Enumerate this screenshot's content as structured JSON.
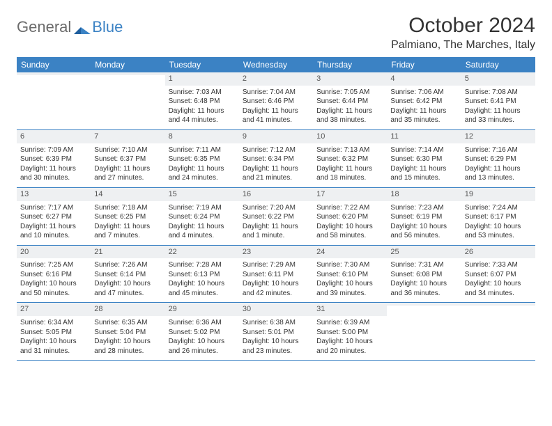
{
  "logo": {
    "part1": "General",
    "part2": "Blue"
  },
  "title": "October 2024",
  "location": "Palmiano, The Marches, Italy",
  "colors": {
    "header_bg": "#3b82c4",
    "daynum_bg": "#eef0f2",
    "border": "#3b82c4",
    "text": "#333333",
    "page_bg": "#ffffff"
  },
  "weekdays": [
    "Sunday",
    "Monday",
    "Tuesday",
    "Wednesday",
    "Thursday",
    "Friday",
    "Saturday"
  ],
  "weeks": [
    [
      {
        "n": "",
        "sr": "",
        "ss": "",
        "dl": ""
      },
      {
        "n": "",
        "sr": "",
        "ss": "",
        "dl": ""
      },
      {
        "n": "1",
        "sr": "Sunrise: 7:03 AM",
        "ss": "Sunset: 6:48 PM",
        "dl": "Daylight: 11 hours and 44 minutes."
      },
      {
        "n": "2",
        "sr": "Sunrise: 7:04 AM",
        "ss": "Sunset: 6:46 PM",
        "dl": "Daylight: 11 hours and 41 minutes."
      },
      {
        "n": "3",
        "sr": "Sunrise: 7:05 AM",
        "ss": "Sunset: 6:44 PM",
        "dl": "Daylight: 11 hours and 38 minutes."
      },
      {
        "n": "4",
        "sr": "Sunrise: 7:06 AM",
        "ss": "Sunset: 6:42 PM",
        "dl": "Daylight: 11 hours and 35 minutes."
      },
      {
        "n": "5",
        "sr": "Sunrise: 7:08 AM",
        "ss": "Sunset: 6:41 PM",
        "dl": "Daylight: 11 hours and 33 minutes."
      }
    ],
    [
      {
        "n": "6",
        "sr": "Sunrise: 7:09 AM",
        "ss": "Sunset: 6:39 PM",
        "dl": "Daylight: 11 hours and 30 minutes."
      },
      {
        "n": "7",
        "sr": "Sunrise: 7:10 AM",
        "ss": "Sunset: 6:37 PM",
        "dl": "Daylight: 11 hours and 27 minutes."
      },
      {
        "n": "8",
        "sr": "Sunrise: 7:11 AM",
        "ss": "Sunset: 6:35 PM",
        "dl": "Daylight: 11 hours and 24 minutes."
      },
      {
        "n": "9",
        "sr": "Sunrise: 7:12 AM",
        "ss": "Sunset: 6:34 PM",
        "dl": "Daylight: 11 hours and 21 minutes."
      },
      {
        "n": "10",
        "sr": "Sunrise: 7:13 AM",
        "ss": "Sunset: 6:32 PM",
        "dl": "Daylight: 11 hours and 18 minutes."
      },
      {
        "n": "11",
        "sr": "Sunrise: 7:14 AM",
        "ss": "Sunset: 6:30 PM",
        "dl": "Daylight: 11 hours and 15 minutes."
      },
      {
        "n": "12",
        "sr": "Sunrise: 7:16 AM",
        "ss": "Sunset: 6:29 PM",
        "dl": "Daylight: 11 hours and 13 minutes."
      }
    ],
    [
      {
        "n": "13",
        "sr": "Sunrise: 7:17 AM",
        "ss": "Sunset: 6:27 PM",
        "dl": "Daylight: 11 hours and 10 minutes."
      },
      {
        "n": "14",
        "sr": "Sunrise: 7:18 AM",
        "ss": "Sunset: 6:25 PM",
        "dl": "Daylight: 11 hours and 7 minutes."
      },
      {
        "n": "15",
        "sr": "Sunrise: 7:19 AM",
        "ss": "Sunset: 6:24 PM",
        "dl": "Daylight: 11 hours and 4 minutes."
      },
      {
        "n": "16",
        "sr": "Sunrise: 7:20 AM",
        "ss": "Sunset: 6:22 PM",
        "dl": "Daylight: 11 hours and 1 minute."
      },
      {
        "n": "17",
        "sr": "Sunrise: 7:22 AM",
        "ss": "Sunset: 6:20 PM",
        "dl": "Daylight: 10 hours and 58 minutes."
      },
      {
        "n": "18",
        "sr": "Sunrise: 7:23 AM",
        "ss": "Sunset: 6:19 PM",
        "dl": "Daylight: 10 hours and 56 minutes."
      },
      {
        "n": "19",
        "sr": "Sunrise: 7:24 AM",
        "ss": "Sunset: 6:17 PM",
        "dl": "Daylight: 10 hours and 53 minutes."
      }
    ],
    [
      {
        "n": "20",
        "sr": "Sunrise: 7:25 AM",
        "ss": "Sunset: 6:16 PM",
        "dl": "Daylight: 10 hours and 50 minutes."
      },
      {
        "n": "21",
        "sr": "Sunrise: 7:26 AM",
        "ss": "Sunset: 6:14 PM",
        "dl": "Daylight: 10 hours and 47 minutes."
      },
      {
        "n": "22",
        "sr": "Sunrise: 7:28 AM",
        "ss": "Sunset: 6:13 PM",
        "dl": "Daylight: 10 hours and 45 minutes."
      },
      {
        "n": "23",
        "sr": "Sunrise: 7:29 AM",
        "ss": "Sunset: 6:11 PM",
        "dl": "Daylight: 10 hours and 42 minutes."
      },
      {
        "n": "24",
        "sr": "Sunrise: 7:30 AM",
        "ss": "Sunset: 6:10 PM",
        "dl": "Daylight: 10 hours and 39 minutes."
      },
      {
        "n": "25",
        "sr": "Sunrise: 7:31 AM",
        "ss": "Sunset: 6:08 PM",
        "dl": "Daylight: 10 hours and 36 minutes."
      },
      {
        "n": "26",
        "sr": "Sunrise: 7:33 AM",
        "ss": "Sunset: 6:07 PM",
        "dl": "Daylight: 10 hours and 34 minutes."
      }
    ],
    [
      {
        "n": "27",
        "sr": "Sunrise: 6:34 AM",
        "ss": "Sunset: 5:05 PM",
        "dl": "Daylight: 10 hours and 31 minutes."
      },
      {
        "n": "28",
        "sr": "Sunrise: 6:35 AM",
        "ss": "Sunset: 5:04 PM",
        "dl": "Daylight: 10 hours and 28 minutes."
      },
      {
        "n": "29",
        "sr": "Sunrise: 6:36 AM",
        "ss": "Sunset: 5:02 PM",
        "dl": "Daylight: 10 hours and 26 minutes."
      },
      {
        "n": "30",
        "sr": "Sunrise: 6:38 AM",
        "ss": "Sunset: 5:01 PM",
        "dl": "Daylight: 10 hours and 23 minutes."
      },
      {
        "n": "31",
        "sr": "Sunrise: 6:39 AM",
        "ss": "Sunset: 5:00 PM",
        "dl": "Daylight: 10 hours and 20 minutes."
      },
      {
        "n": "",
        "sr": "",
        "ss": "",
        "dl": ""
      },
      {
        "n": "",
        "sr": "",
        "ss": "",
        "dl": ""
      }
    ]
  ]
}
